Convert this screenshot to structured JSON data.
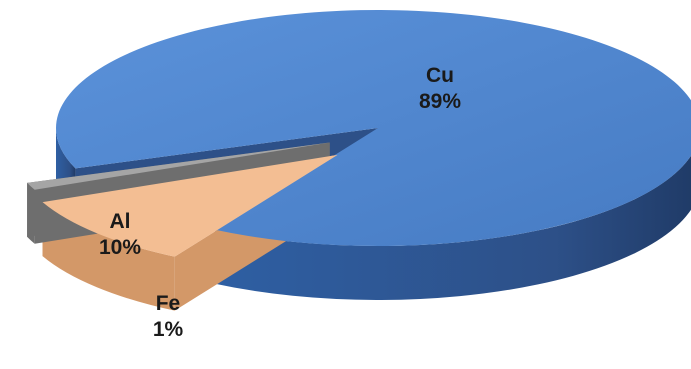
{
  "chart_data": {
    "type": "pie",
    "style": "3d-exploded",
    "title": "",
    "legend": "none",
    "slices": [
      {
        "label": "Cu",
        "value": 89,
        "display": "89%",
        "color": "#4f86d0",
        "side_color": "#2d5088"
      },
      {
        "label": "Al",
        "value": 10,
        "display": "10%",
        "color": "#f3be93",
        "side_color": "#d39868"
      },
      {
        "label": "Fe",
        "value": 1,
        "display": "1%",
        "color": "#a5a5a5",
        "side_color": "#6e6e6e"
      }
    ]
  }
}
